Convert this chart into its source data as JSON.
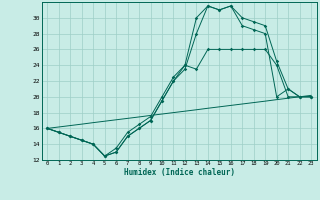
{
  "xlabel": "Humidex (Indice chaleur)",
  "x": [
    0,
    1,
    2,
    3,
    4,
    5,
    6,
    7,
    8,
    9,
    10,
    11,
    12,
    13,
    14,
    15,
    16,
    17,
    18,
    19,
    20,
    21,
    22,
    23
  ],
  "line_top": [
    16.0,
    15.5,
    15.0,
    14.5,
    14.0,
    12.5,
    13.5,
    15.5,
    16.5,
    17.5,
    20.0,
    22.5,
    24.0,
    30.0,
    31.5,
    31.0,
    31.5,
    30.0,
    29.5,
    29.0,
    24.5,
    21.0,
    20.0,
    20.0
  ],
  "line_mid": [
    16.0,
    15.5,
    15.0,
    14.5,
    14.0,
    12.5,
    13.0,
    15.0,
    16.0,
    17.0,
    19.5,
    22.0,
    23.5,
    28.0,
    31.5,
    31.0,
    31.5,
    29.0,
    28.5,
    28.0,
    20.0,
    21.0,
    20.0,
    20.0
  ],
  "line_low": [
    16.0,
    15.5,
    15.0,
    14.5,
    14.0,
    12.5,
    13.0,
    15.0,
    16.0,
    17.0,
    19.5,
    22.0,
    24.0,
    23.5,
    26.0,
    26.0,
    26.0,
    26.0,
    26.0,
    26.0,
    24.0,
    20.0,
    20.0,
    20.0
  ],
  "line_diag": [
    16.0,
    16.18,
    16.36,
    16.54,
    16.73,
    16.91,
    17.09,
    17.27,
    17.45,
    17.64,
    17.82,
    18.0,
    18.18,
    18.36,
    18.55,
    18.73,
    18.91,
    19.09,
    19.27,
    19.45,
    19.64,
    19.82,
    20.0,
    20.18
  ],
  "bg_color": "#c8ece6",
  "grid_color": "#9ecfc7",
  "line_color": "#006655",
  "ylim": [
    12,
    32
  ],
  "yticks": [
    12,
    14,
    16,
    18,
    20,
    22,
    24,
    26,
    28,
    30
  ],
  "xlim": [
    -0.5,
    23.5
  ]
}
